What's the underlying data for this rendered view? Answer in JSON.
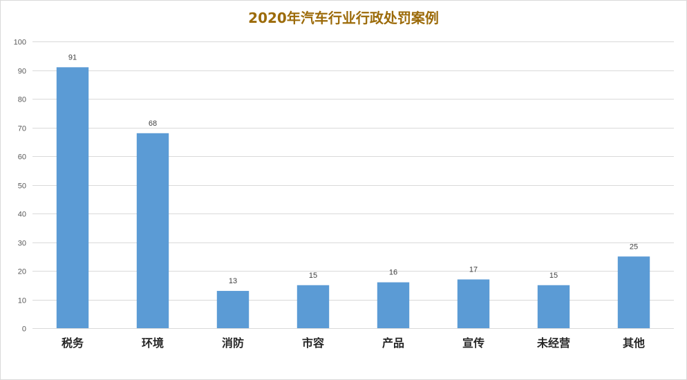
{
  "chart_data": {
    "type": "bar",
    "title": "2020年汽车行业行政处罚案例",
    "categories": [
      "税务",
      "环境",
      "消防",
      "市容",
      "产品",
      "宣传",
      "未经营",
      "其他"
    ],
    "series": [
      {
        "values": [
          91,
          68,
          13,
          15,
          16,
          17,
          15,
          25
        ]
      }
    ],
    "ylim": [
      0,
      100
    ],
    "yticks": [
      0,
      10,
      20,
      30,
      40,
      50,
      60,
      70,
      80,
      90,
      100
    ],
    "xlabel": "",
    "ylabel": "",
    "grid": true,
    "legend": "none",
    "bar_color": "#5b9bd5",
    "grid_color": "#d9d9d9",
    "title_color": "#9c6b0a"
  }
}
